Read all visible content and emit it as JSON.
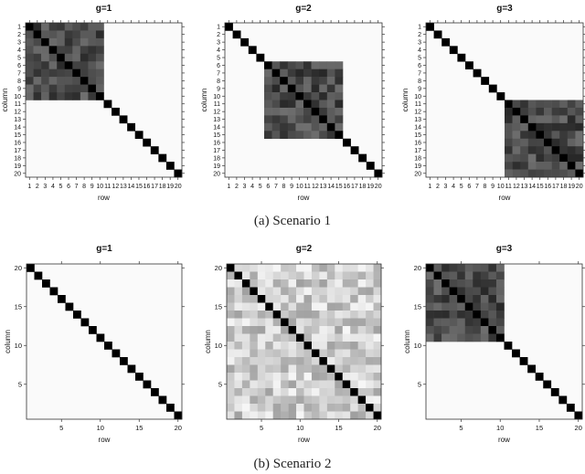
{
  "captions": [
    "(a) Scenario 1",
    "(b) Scenario 2"
  ],
  "chart_data": [
    {
      "type": "heatmap",
      "scenario": "Scenario 1",
      "title": "g=1",
      "xlabel": "row",
      "ylabel": "column",
      "n": 20,
      "tick_labels": [
        "1",
        "2",
        "3",
        "4",
        "5",
        "6",
        "7",
        "8",
        "9",
        "10",
        "11",
        "12",
        "13",
        "14",
        "15",
        "16",
        "17",
        "18",
        "19",
        "20"
      ],
      "diagonal": 1,
      "block": [
        1,
        10
      ],
      "block_level": "dark",
      "background": "#fafafa"
    },
    {
      "type": "heatmap",
      "scenario": "Scenario 1",
      "title": "g=2",
      "xlabel": "row",
      "ylabel": "column",
      "n": 20,
      "tick_labels": [
        "1",
        "2",
        "3",
        "4",
        "5",
        "6",
        "7",
        "8",
        "9",
        "10",
        "11",
        "12",
        "13",
        "14",
        "15",
        "16",
        "17",
        "18",
        "19",
        "20"
      ],
      "diagonal": 1,
      "block": [
        6,
        15
      ],
      "block_level": "dark",
      "background": "#fafafa"
    },
    {
      "type": "heatmap",
      "scenario": "Scenario 1",
      "title": "g=3",
      "xlabel": "row",
      "ylabel": "column",
      "n": 20,
      "tick_labels": [
        "1",
        "2",
        "3",
        "4",
        "5",
        "6",
        "7",
        "8",
        "9",
        "10",
        "11",
        "12",
        "13",
        "14",
        "15",
        "16",
        "17",
        "18",
        "19",
        "20"
      ],
      "diagonal": 1,
      "block": [
        11,
        20
      ],
      "block_level": "dark",
      "background": "#fafafa"
    },
    {
      "type": "heatmap",
      "scenario": "Scenario 2",
      "title": "g=1",
      "xlabel": "row",
      "ylabel": "column",
      "n": 20,
      "x_ticks": [
        "5",
        "10",
        "15",
        "20"
      ],
      "y_ticks": [
        "5",
        "10",
        "15",
        "20"
      ],
      "diagonal": 1,
      "block": null,
      "background": "#fafafa"
    },
    {
      "type": "heatmap",
      "scenario": "Scenario 2",
      "title": "g=2",
      "xlabel": "row",
      "ylabel": "column",
      "n": 20,
      "x_ticks": [
        "5",
        "10",
        "15",
        "20"
      ],
      "y_ticks": [
        "5",
        "10",
        "15",
        "20"
      ],
      "diagonal": 1,
      "block": [
        1,
        20
      ],
      "block_level": "light",
      "background": "#fafafa"
    },
    {
      "type": "heatmap",
      "scenario": "Scenario 2",
      "title": "g=3",
      "xlabel": "row",
      "ylabel": "column",
      "n": 20,
      "x_ticks": [
        "5",
        "10",
        "15",
        "20"
      ],
      "y_ticks": [
        "5",
        "10",
        "15",
        "20"
      ],
      "diagonal": 1,
      "block": [
        1,
        10
      ],
      "block_level": "dark",
      "background": "#fafafa"
    }
  ]
}
